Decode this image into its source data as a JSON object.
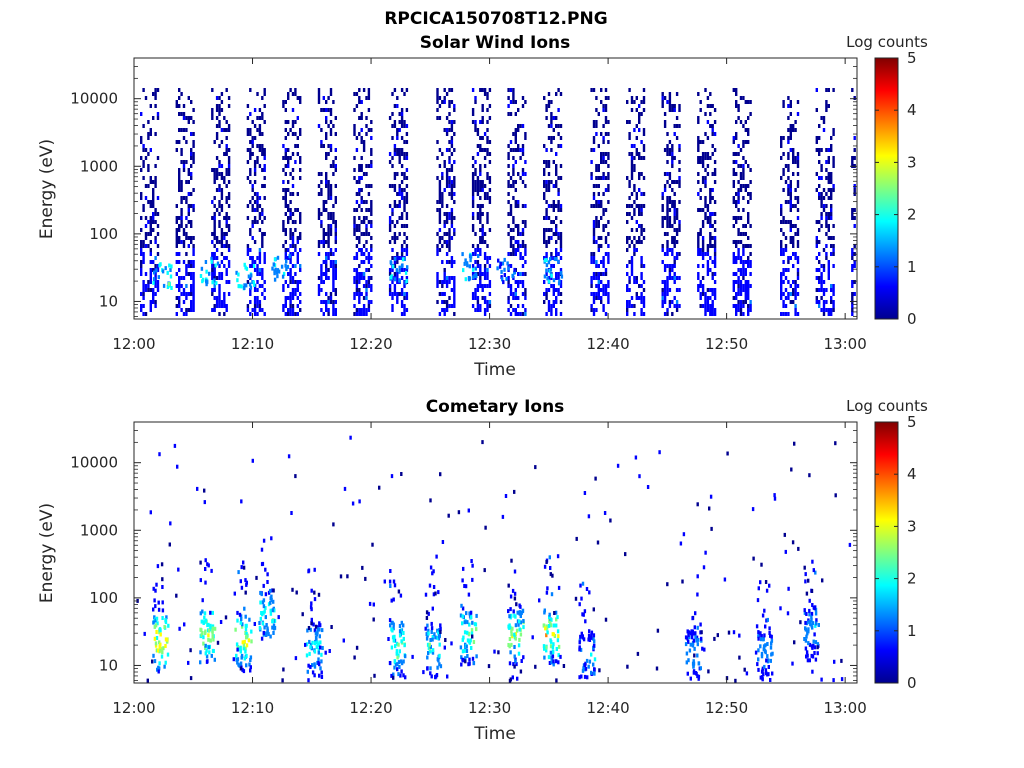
{
  "figure_title": "RPCICA150708T12.PNG",
  "colors": {
    "colormap": [
      "#00008f",
      "#0000ff",
      "#0080ff",
      "#00ffff",
      "#80ff80",
      "#ffff00",
      "#ff8000",
      "#ff0000",
      "#800000"
    ],
    "axes": "#262626",
    "background": "#ffffff"
  },
  "chart_data": [
    {
      "type": "heatmap",
      "title": "Solar Wind Ions",
      "xlabel": "Time",
      "ylabel": "Energy (eV)",
      "y_scale": "log",
      "xlim": [
        "12:00",
        "13:01"
      ],
      "ylim": [
        5.5,
        40000
      ],
      "x_ticks": [
        "12:00",
        "12:10",
        "12:20",
        "12:30",
        "12:40",
        "12:50",
        "13:00"
      ],
      "y_ticks": [
        "10",
        "100",
        "1000",
        "10000"
      ],
      "colorbar": {
        "label": "Log counts",
        "range": [
          0,
          5
        ],
        "ticks": [
          "0",
          "1",
          "2",
          "3",
          "4",
          "5"
        ]
      },
      "sweep_start_minutes": [
        0,
        3,
        6,
        9,
        12,
        15,
        18,
        21,
        25,
        28,
        31,
        34,
        38,
        41,
        44,
        47,
        50,
        54,
        57,
        60
      ],
      "low_energy_hot_spots": [
        {
          "minute": 2,
          "energy": 25,
          "log_counts": 2.2
        },
        {
          "minute": 6,
          "energy": 30,
          "log_counts": 2.0
        },
        {
          "minute": 9,
          "energy": 25,
          "log_counts": 2.1
        },
        {
          "minute": 12,
          "energy": 35,
          "log_counts": 1.6
        },
        {
          "minute": 22,
          "energy": 30,
          "log_counts": 1.7
        },
        {
          "minute": 28,
          "energy": 35,
          "log_counts": 1.7
        },
        {
          "minute": 31,
          "energy": 30,
          "log_counts": 1.5
        },
        {
          "minute": 35,
          "energy": 30,
          "log_counts": 1.6
        }
      ]
    },
    {
      "type": "heatmap",
      "title": "Cometary Ions",
      "xlabel": "Time",
      "ylabel": "Energy (eV)",
      "y_scale": "log",
      "xlim": [
        "12:00",
        "13:01"
      ],
      "ylim": [
        5.5,
        40000
      ],
      "x_ticks": [
        "12:00",
        "12:10",
        "12:20",
        "12:30",
        "12:40",
        "12:50",
        "13:00"
      ],
      "y_ticks": [
        "10",
        "100",
        "1000",
        "10000"
      ],
      "colorbar": {
        "label": "Log counts",
        "range": [
          0,
          5
        ],
        "ticks": [
          "0",
          "1",
          "2",
          "3",
          "4",
          "5"
        ]
      },
      "bursts": [
        {
          "minute": 2,
          "energy_peak": 25,
          "log_counts": 3.8
        },
        {
          "minute": 6,
          "energy_peak": 30,
          "log_counts": 3.2
        },
        {
          "minute": 9,
          "energy_peak": 25,
          "log_counts": 3.3
        },
        {
          "minute": 11,
          "energy_peak": 60,
          "log_counts": 2.4
        },
        {
          "minute": 15,
          "energy_peak": 20,
          "log_counts": 2.2
        },
        {
          "minute": 22,
          "energy_peak": 20,
          "log_counts": 2.8
        },
        {
          "minute": 25,
          "energy_peak": 20,
          "log_counts": 2.3
        },
        {
          "minute": 28,
          "energy_peak": 30,
          "log_counts": 2.9
        },
        {
          "minute": 32,
          "energy_peak": 30,
          "log_counts": 3.0
        },
        {
          "minute": 35,
          "energy_peak": 30,
          "log_counts": 3.4
        },
        {
          "minute": 38,
          "energy_peak": 15,
          "log_counts": 1.7
        },
        {
          "minute": 47,
          "energy_peak": 15,
          "log_counts": 1.7
        },
        {
          "minute": 53,
          "energy_peak": 18,
          "log_counts": 1.6
        },
        {
          "minute": 57,
          "energy_peak": 35,
          "log_counts": 1.8
        }
      ]
    }
  ]
}
